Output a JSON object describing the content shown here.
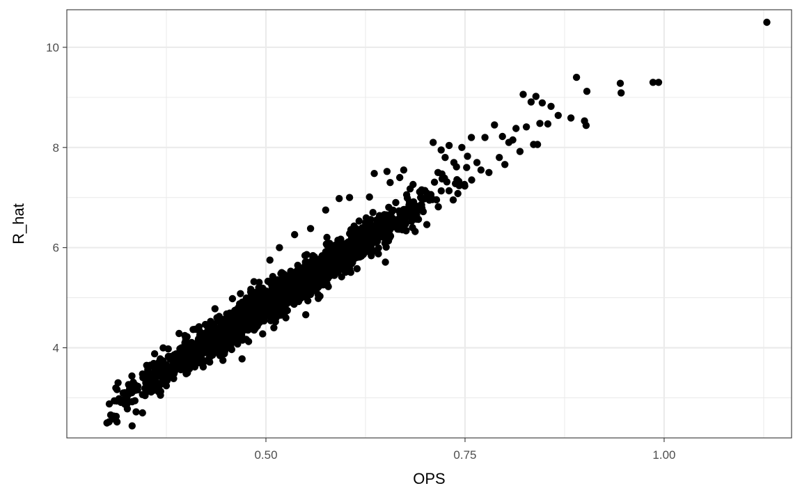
{
  "chart_data": {
    "type": "scatter",
    "xlabel": "OPS",
    "ylabel": "R_hat",
    "xlim": [
      0.25,
      1.16
    ],
    "ylim": [
      2.2,
      10.75
    ],
    "x_ticks": [
      0.5,
      0.75,
      1.0
    ],
    "x_tick_labels": [
      "0.50",
      "0.75",
      "1.00"
    ],
    "x_minor_ticks": [
      0.375,
      0.625,
      0.875,
      1.125
    ],
    "y_ticks": [
      4,
      6,
      8,
      10
    ],
    "y_tick_labels": [
      "4",
      "6",
      "8",
      "10"
    ],
    "y_minor_ticks": [
      3,
      5,
      7,
      9
    ],
    "grid": true,
    "point_color": "#000000",
    "panel_border_color": "#333333",
    "grid_color": "#ebebeb",
    "cloud": {
      "count": 2600,
      "x_min": 0.3,
      "x_max": 0.76,
      "fit_intercept": -0.23,
      "fit_slope": 10.18,
      "residual_sd": 0.17
    },
    "points": [
      [
        0.303,
        2.52
      ],
      [
        0.308,
        2.58
      ],
      [
        0.313,
        2.52
      ],
      [
        0.312,
        2.63
      ],
      [
        0.318,
        2.91
      ],
      [
        0.326,
        2.78
      ],
      [
        0.332,
        2.44
      ],
      [
        0.329,
        3.09
      ],
      [
        0.337,
        2.72
      ],
      [
        0.345,
        2.7
      ],
      [
        0.35,
        3.35
      ],
      [
        0.36,
        3.6
      ],
      [
        0.366,
        3.72
      ],
      [
        0.374,
        3.45
      ],
      [
        0.385,
        3.7
      ],
      [
        0.392,
        3.98
      ],
      [
        0.401,
        4.22
      ],
      [
        0.404,
        3.58
      ],
      [
        0.416,
        4.42
      ],
      [
        0.425,
        4.15
      ],
      [
        0.436,
        4.78
      ],
      [
        0.446,
        4.55
      ],
      [
        0.458,
        4.98
      ],
      [
        0.462,
        4.62
      ],
      [
        0.468,
        5.08
      ],
      [
        0.47,
        3.78
      ],
      [
        0.485,
        5.32
      ],
      [
        0.495,
        4.76
      ],
      [
        0.505,
        5.75
      ],
      [
        0.51,
        4.4
      ],
      [
        0.517,
        6.0
      ],
      [
        0.525,
        4.6
      ],
      [
        0.536,
        6.26
      ],
      [
        0.538,
        5.08
      ],
      [
        0.55,
        4.66
      ],
      [
        0.556,
        6.38
      ],
      [
        0.568,
        5.65
      ],
      [
        0.575,
        6.75
      ],
      [
        0.587,
        6.05
      ],
      [
        0.592,
        6.98
      ],
      [
        0.6,
        5.51
      ],
      [
        0.605,
        7.0
      ],
      [
        0.613,
        6.12
      ],
      [
        0.617,
        6.53
      ],
      [
        0.625,
        6.5
      ],
      [
        0.63,
        7.01
      ],
      [
        0.636,
        7.48
      ],
      [
        0.645,
        6.5
      ],
      [
        0.65,
        5.71
      ],
      [
        0.652,
        7.52
      ],
      [
        0.656,
        7.3
      ],
      [
        0.663,
        6.9
      ],
      [
        0.668,
        7.4
      ],
      [
        0.673,
        7.55
      ],
      [
        0.684,
        6.4
      ],
      [
        0.692,
        6.76
      ],
      [
        0.702,
        6.46
      ],
      [
        0.71,
        8.1
      ],
      [
        0.716,
        7.5
      ],
      [
        0.72,
        7.95
      ],
      [
        0.725,
        7.8
      ],
      [
        0.73,
        8.04
      ],
      [
        0.736,
        7.7
      ],
      [
        0.741,
        7.08
      ],
      [
        0.746,
        8.0
      ],
      [
        0.752,
        7.6
      ],
      [
        0.758,
        8.2
      ],
      [
        0.765,
        7.7
      ],
      [
        0.77,
        7.55
      ],
      [
        0.775,
        8.2
      ],
      [
        0.78,
        7.5
      ],
      [
        0.787,
        8.45
      ],
      [
        0.793,
        7.8
      ],
      [
        0.797,
        8.22
      ],
      [
        0.8,
        7.66
      ],
      [
        0.805,
        8.1
      ],
      [
        0.81,
        8.15
      ],
      [
        0.814,
        8.38
      ],
      [
        0.819,
        7.92
      ],
      [
        0.823,
        9.06
      ],
      [
        0.827,
        8.41
      ],
      [
        0.833,
        8.91
      ],
      [
        0.836,
        8.06
      ],
      [
        0.839,
        9.02
      ],
      [
        0.841,
        8.06
      ],
      [
        0.844,
        8.48
      ],
      [
        0.847,
        8.89
      ],
      [
        0.854,
        8.47
      ],
      [
        0.858,
        8.82
      ],
      [
        0.867,
        8.64
      ],
      [
        0.883,
        8.59
      ],
      [
        0.89,
        9.4
      ],
      [
        0.9,
        8.53
      ],
      [
        0.903,
        9.12
      ],
      [
        0.902,
        8.44
      ],
      [
        0.945,
        9.28
      ],
      [
        0.946,
        9.09
      ],
      [
        0.986,
        9.3
      ],
      [
        0.993,
        9.3
      ],
      [
        1.129,
        10.5
      ]
    ]
  }
}
